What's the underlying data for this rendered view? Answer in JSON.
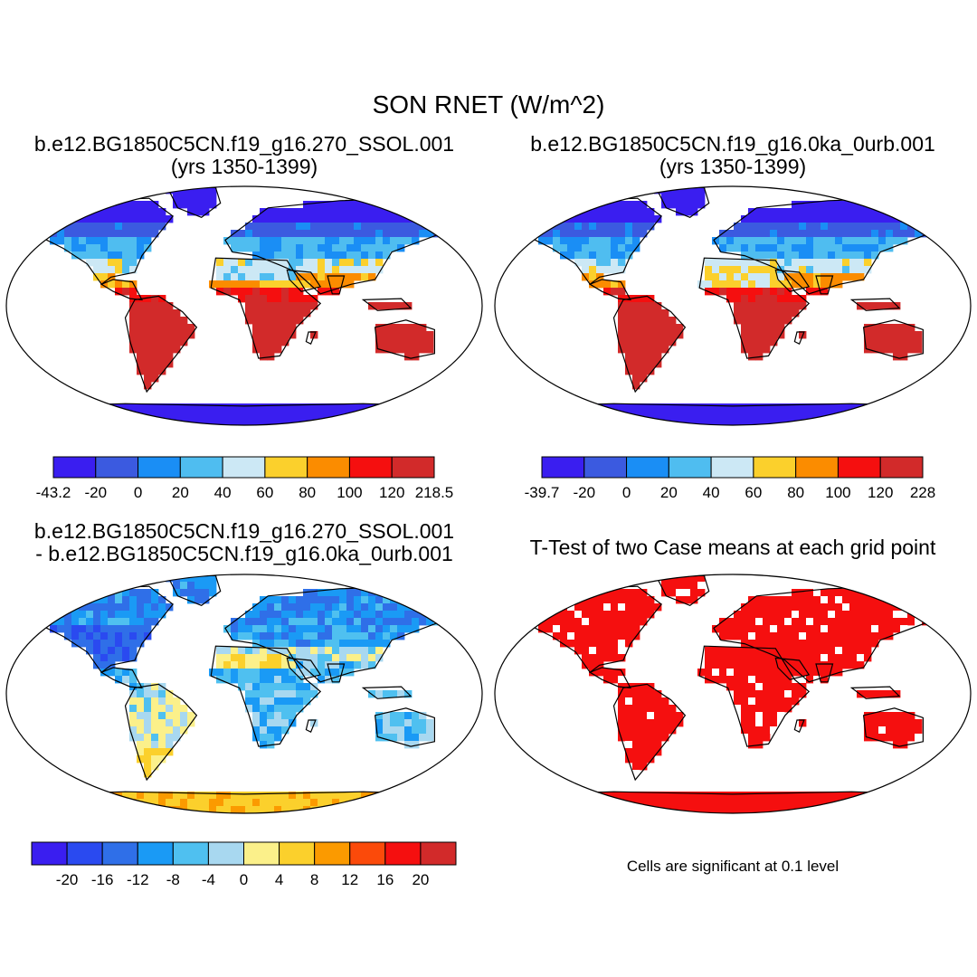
{
  "title": "SON RNET (W/m^2)",
  "panels": [
    {
      "title_line1": "b.e12.BG1850C5CN.f19_g16.270_SSOL.001",
      "title_line2": "(yrs 1350-1399)"
    },
    {
      "title_line1": "b.e12.BG1850C5CN.f19_g16.0ka_0urb.001",
      "title_line2": "(yrs 1350-1399)"
    },
    {
      "title_line1": "b.e12.BG1850C5CN.f19_g16.270_SSOL.001",
      "title_line2": "- b.e12.BG1850C5CN.f19_g16.0ka_0urb.001"
    },
    {
      "title_line1": "T-Test of two Case means at each grid point",
      "title_line2": ""
    }
  ],
  "footnote": "Cells are significant at 0.1 level",
  "chart_data": [
    {
      "type": "heatmap",
      "subtype": "global-map",
      "title": "b.e12.BG1850C5CN.f19_g16.270_SSOL.001 (yrs 1350-1399)",
      "variable": "RNET",
      "season": "SON",
      "units": "W/m^2",
      "colorbar": {
        "labels": [
          "-43.2",
          "-20",
          "0",
          "20",
          "40",
          "60",
          "80",
          "100",
          "120",
          "218.5"
        ],
        "colors": [
          "#3a1ef0",
          "#3b5ae0",
          "#1a8ef5",
          "#4fbdf0",
          "#cce8f5",
          "#fbd02c",
          "#fb8c00",
          "#f50f0f",
          "#d22a2a"
        ]
      }
    },
    {
      "type": "heatmap",
      "subtype": "global-map",
      "title": "b.e12.BG1850C5CN.f19_g16.0ka_0urb.001 (yrs 1350-1399)",
      "variable": "RNET",
      "season": "SON",
      "units": "W/m^2",
      "colorbar": {
        "labels": [
          "-39.7",
          "-20",
          "0",
          "20",
          "40",
          "60",
          "80",
          "100",
          "120",
          "228"
        ],
        "colors": [
          "#3a1ef0",
          "#3b5ae0",
          "#1a8ef5",
          "#4fbdf0",
          "#cce8f5",
          "#fbd02c",
          "#fb8c00",
          "#f50f0f",
          "#d22a2a"
        ]
      }
    },
    {
      "type": "heatmap",
      "subtype": "global-map-difference",
      "title": "b.e12.BG1850C5CN.f19_g16.270_SSOL.001 - b.e12.BG1850C5CN.f19_g16.0ka_0urb.001",
      "variable": "RNET",
      "season": "SON",
      "units": "W/m^2",
      "colorbar": {
        "labels": [
          "-20",
          "-16",
          "-12",
          "-8",
          "-4",
          "0",
          "4",
          "8",
          "12",
          "16",
          "20"
        ],
        "colors": [
          "#3a1ef0",
          "#2a4af0",
          "#2f6fe8",
          "#1a9af5",
          "#4fc0f0",
          "#a8d8f0",
          "#fbf08a",
          "#fbd02c",
          "#fb9a00",
          "#fb4a0a",
          "#f50f0f",
          "#d22a2a"
        ]
      }
    },
    {
      "type": "heatmap",
      "subtype": "significance-mask",
      "title": "T-Test of two Case means at each grid point",
      "significance_level": 0.1,
      "colors": {
        "significant": "#f50f0f",
        "not_significant": "#ffffff"
      }
    }
  ]
}
